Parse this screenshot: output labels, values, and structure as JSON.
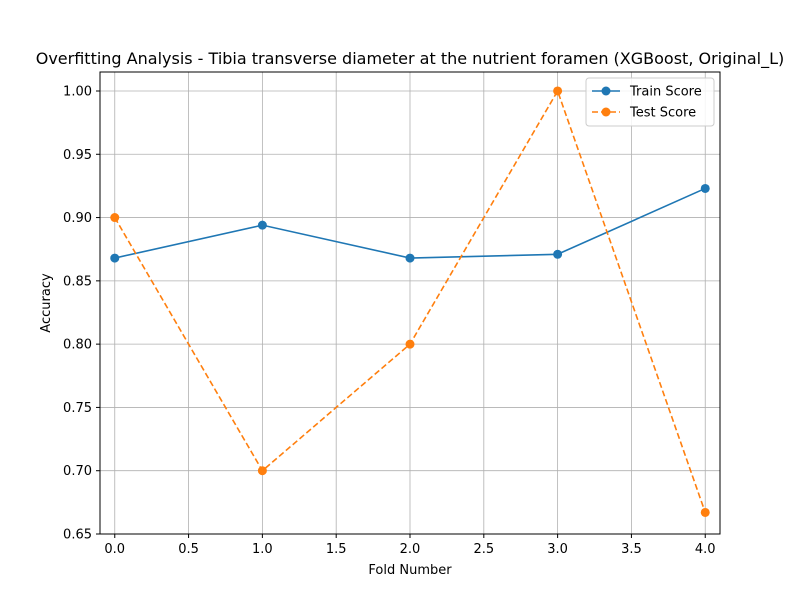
{
  "chart_data": {
    "type": "line",
    "title": "Overfitting Analysis - Tibia transverse diameter at the nutrient foramen (XGBoost, Original_L)",
    "xlabel": "Fold Number",
    "ylabel": "Accuracy",
    "xlim": [
      -0.1,
      4.1
    ],
    "ylim": [
      0.65,
      1.015
    ],
    "xticks": [
      0.0,
      0.5,
      1.0,
      1.5,
      2.0,
      2.5,
      3.0,
      3.5,
      4.0
    ],
    "xtick_labels": [
      "0.0",
      "0.5",
      "1.0",
      "1.5",
      "2.0",
      "2.5",
      "3.0",
      "3.5",
      "4.0"
    ],
    "yticks": [
      0.65,
      0.7,
      0.75,
      0.8,
      0.85,
      0.9,
      0.95,
      1.0
    ],
    "ytick_labels": [
      "0.65",
      "0.70",
      "0.75",
      "0.80",
      "0.85",
      "0.90",
      "0.95",
      "1.00"
    ],
    "grid": true,
    "legend_position": "top-right",
    "x": [
      0,
      1,
      2,
      3,
      4
    ],
    "series": [
      {
        "name": "Train Score",
        "values": [
          0.868,
          0.894,
          0.868,
          0.871,
          0.923
        ],
        "color": "#1f77b4",
        "line_style": "solid",
        "marker": "circle"
      },
      {
        "name": "Test Score",
        "values": [
          0.9,
          0.7,
          0.8,
          1.0,
          0.667
        ],
        "color": "#ff7f0e",
        "line_style": "dashed",
        "marker": "circle"
      }
    ]
  }
}
